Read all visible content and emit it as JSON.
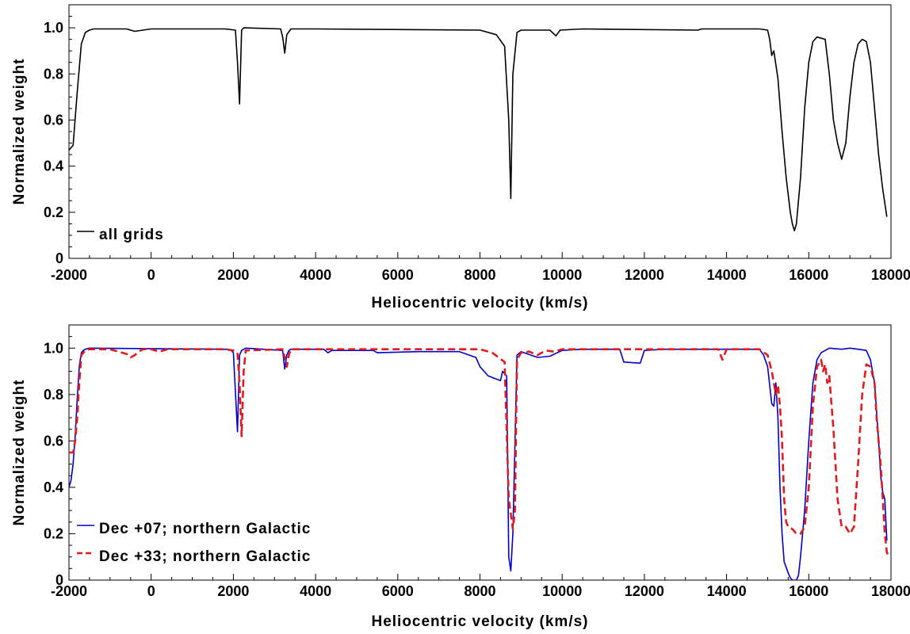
{
  "chart_data": [
    {
      "type": "line",
      "xlabel": "Heliocentric velocity (km/s)",
      "ylabel": "Normalized weight",
      "xlim": [
        -2000,
        18000
      ],
      "ylim": [
        0,
        1.1
      ],
      "xticks": [
        -2000,
        0,
        2000,
        4000,
        6000,
        8000,
        10000,
        12000,
        14000,
        16000,
        18000
      ],
      "xtick_labels": [
        "-2000",
        "0",
        "2000",
        "4000",
        "6000",
        "8000",
        "10000",
        "12000",
        "14000",
        "16000",
        "18000"
      ],
      "yticks": [
        0,
        0.2,
        0.4,
        0.6,
        0.8,
        1.0
      ],
      "ytick_labels": [
        "0",
        "0.2",
        "0.4",
        "0.6",
        "0.8",
        "1.0"
      ],
      "legend_position": "bottom-left",
      "grid": false,
      "series": [
        {
          "name": "all grids",
          "color": "#000000",
          "dash": "solid",
          "x": [
            -2000,
            -1900,
            -1800,
            -1700,
            -1600,
            -1500,
            -1400,
            -1000,
            -600,
            -400,
            0,
            400,
            1800,
            2050,
            2100,
            2150,
            2200,
            2250,
            3150,
            3200,
            3250,
            3300,
            3400,
            4000,
            8000,
            8400,
            8600,
            8700,
            8750,
            8800,
            8900,
            9000,
            9700,
            9850,
            9950,
            10500,
            13300,
            13400,
            14800,
            15000,
            15050,
            15100,
            15150,
            15250,
            15350,
            15450,
            15550,
            15600,
            15650,
            15700,
            15800,
            15900,
            16000,
            16100,
            16200,
            16300,
            16400,
            16500,
            16600,
            16700,
            16800,
            16900,
            17000,
            17100,
            17200,
            17300,
            17400,
            17500,
            17600,
            17700,
            17800,
            17900
          ],
          "y": [
            0.47,
            0.49,
            0.72,
            0.93,
            0.98,
            0.99,
            0.995,
            0.995,
            0.995,
            0.985,
            0.995,
            0.995,
            0.995,
            0.99,
            0.85,
            0.67,
            0.99,
            1.0,
            0.995,
            0.96,
            0.89,
            0.97,
            0.995,
            0.995,
            0.99,
            0.97,
            0.92,
            0.6,
            0.26,
            0.8,
            0.98,
            0.99,
            0.99,
            0.965,
            0.99,
            0.995,
            0.99,
            0.995,
            0.995,
            0.99,
            0.95,
            0.88,
            0.9,
            0.78,
            0.55,
            0.35,
            0.2,
            0.15,
            0.12,
            0.15,
            0.35,
            0.65,
            0.85,
            0.94,
            0.96,
            0.955,
            0.95,
            0.8,
            0.6,
            0.5,
            0.43,
            0.5,
            0.7,
            0.85,
            0.93,
            0.95,
            0.94,
            0.85,
            0.65,
            0.45,
            0.3,
            0.18
          ]
        }
      ]
    },
    {
      "type": "line",
      "xlabel": "Heliocentric velocity (km/s)",
      "ylabel": "Normalized weight",
      "xlim": [
        -2000,
        18000
      ],
      "ylim": [
        0,
        1.1
      ],
      "xticks": [
        -2000,
        0,
        2000,
        4000,
        6000,
        8000,
        10000,
        12000,
        14000,
        16000,
        18000
      ],
      "xtick_labels": [
        "-2000",
        "0",
        "2000",
        "4000",
        "6000",
        "8000",
        "10000",
        "12000",
        "14000",
        "16000",
        "18000"
      ],
      "yticks": [
        0,
        0.2,
        0.4,
        0.6,
        0.8,
        1.0
      ],
      "ytick_labels": [
        "0",
        "0.2",
        "0.4",
        "0.6",
        "0.8",
        "1.0"
      ],
      "legend_position": "bottom-left",
      "grid": false,
      "series": [
        {
          "name": "Dec +07; northern Galactic",
          "color": "#0000cc",
          "dash": "solid",
          "x": [
            -2000,
            -1950,
            -1900,
            -1850,
            -1800,
            -1750,
            -1700,
            -1650,
            -1600,
            -1500,
            1850,
            1950,
            2000,
            2100,
            2150,
            2200,
            2300,
            3200,
            3250,
            3300,
            3350,
            3400,
            4200,
            4300,
            4400,
            5400,
            5500,
            6500,
            7000,
            7500,
            7900,
            8000,
            8200,
            8500,
            8550,
            8650,
            8700,
            8750,
            8800,
            8900,
            9000,
            9400,
            9700,
            10000,
            10500,
            11400,
            11500,
            11900,
            12000,
            12500,
            14800,
            14900,
            15000,
            15100,
            15150,
            15200,
            15250,
            15300,
            15350,
            15400,
            15500,
            15550,
            15600,
            15650,
            15700,
            15750,
            15800,
            15900,
            16000,
            16100,
            16200,
            16300,
            16400,
            16500,
            16800,
            17000,
            17200,
            17400,
            17500,
            17600,
            17700,
            17750,
            17800,
            17850,
            17900
          ],
          "y": [
            0.4,
            0.43,
            0.5,
            0.62,
            0.78,
            0.92,
            0.98,
            0.99,
            0.995,
            1.0,
            0.995,
            0.99,
            0.98,
            0.64,
            0.97,
            0.99,
            1.0,
            0.99,
            0.91,
            0.97,
            0.99,
            0.995,
            0.995,
            0.98,
            0.99,
            0.99,
            0.98,
            0.985,
            0.985,
            0.985,
            0.96,
            0.92,
            0.88,
            0.86,
            0.9,
            0.88,
            0.1,
            0.04,
            0.2,
            0.97,
            0.985,
            0.96,
            0.965,
            0.99,
            0.995,
            0.995,
            0.94,
            0.935,
            0.99,
            0.995,
            0.995,
            0.97,
            0.92,
            0.76,
            0.75,
            0.85,
            0.7,
            0.4,
            0.2,
            0.08,
            0.03,
            0.01,
            0.0,
            0.0,
            0.0,
            0.02,
            0.1,
            0.3,
            0.6,
            0.85,
            0.95,
            0.98,
            0.99,
            1.0,
            0.995,
            1.0,
            0.995,
            0.99,
            0.95,
            0.85,
            0.6,
            0.45,
            0.38,
            0.35,
            0.17
          ]
        },
        {
          "name": "Dec +33; northern Galactic",
          "color": "#e31a1c",
          "dash": "dashed",
          "x": [
            -2000,
            -1900,
            -1850,
            -1800,
            -1750,
            -1700,
            -1600,
            -1500,
            -1000,
            -800,
            -600,
            -500,
            -400,
            -300,
            -200,
            0,
            200,
            400,
            1800,
            2000,
            2100,
            2150,
            2200,
            2250,
            2300,
            3200,
            3250,
            3300,
            3350,
            3400,
            4000,
            8000,
            8300,
            8600,
            8700,
            8800,
            8850,
            8900,
            9000,
            9200,
            9400,
            9600,
            9800,
            10000,
            13800,
            13900,
            14000,
            14800,
            15000,
            15100,
            15200,
            15250,
            15300,
            15350,
            15400,
            15450,
            15500,
            15600,
            15700,
            15800,
            15900,
            16000,
            16100,
            16200,
            16300,
            16350,
            16400,
            16450,
            16500,
            16600,
            16700,
            16800,
            16900,
            17000,
            17100,
            17200,
            17300,
            17400,
            17500,
            17600,
            17650,
            17700,
            17750,
            17800,
            17850,
            17900,
            17950
          ],
          "y": [
            0.55,
            0.55,
            0.6,
            0.7,
            0.85,
            0.97,
            0.99,
            0.995,
            0.995,
            0.985,
            0.975,
            0.96,
            0.97,
            0.985,
            0.995,
            0.995,
            0.985,
            0.995,
            0.995,
            0.99,
            0.98,
            0.85,
            0.62,
            0.9,
            0.99,
            0.995,
            0.96,
            0.92,
            0.97,
            0.995,
            0.995,
            0.995,
            0.98,
            0.94,
            0.35,
            0.22,
            0.3,
            0.95,
            0.98,
            0.985,
            0.97,
            0.99,
            0.985,
            0.995,
            0.995,
            0.95,
            0.995,
            0.995,
            0.97,
            0.9,
            0.8,
            0.84,
            0.75,
            0.6,
            0.35,
            0.25,
            0.23,
            0.22,
            0.2,
            0.2,
            0.23,
            0.4,
            0.75,
            0.92,
            0.95,
            0.9,
            0.93,
            0.85,
            0.88,
            0.65,
            0.35,
            0.23,
            0.23,
            0.2,
            0.23,
            0.5,
            0.8,
            0.93,
            0.92,
            0.85,
            0.7,
            0.6,
            0.5,
            0.35,
            0.2,
            0.12,
            0.1
          ]
        }
      ]
    }
  ]
}
